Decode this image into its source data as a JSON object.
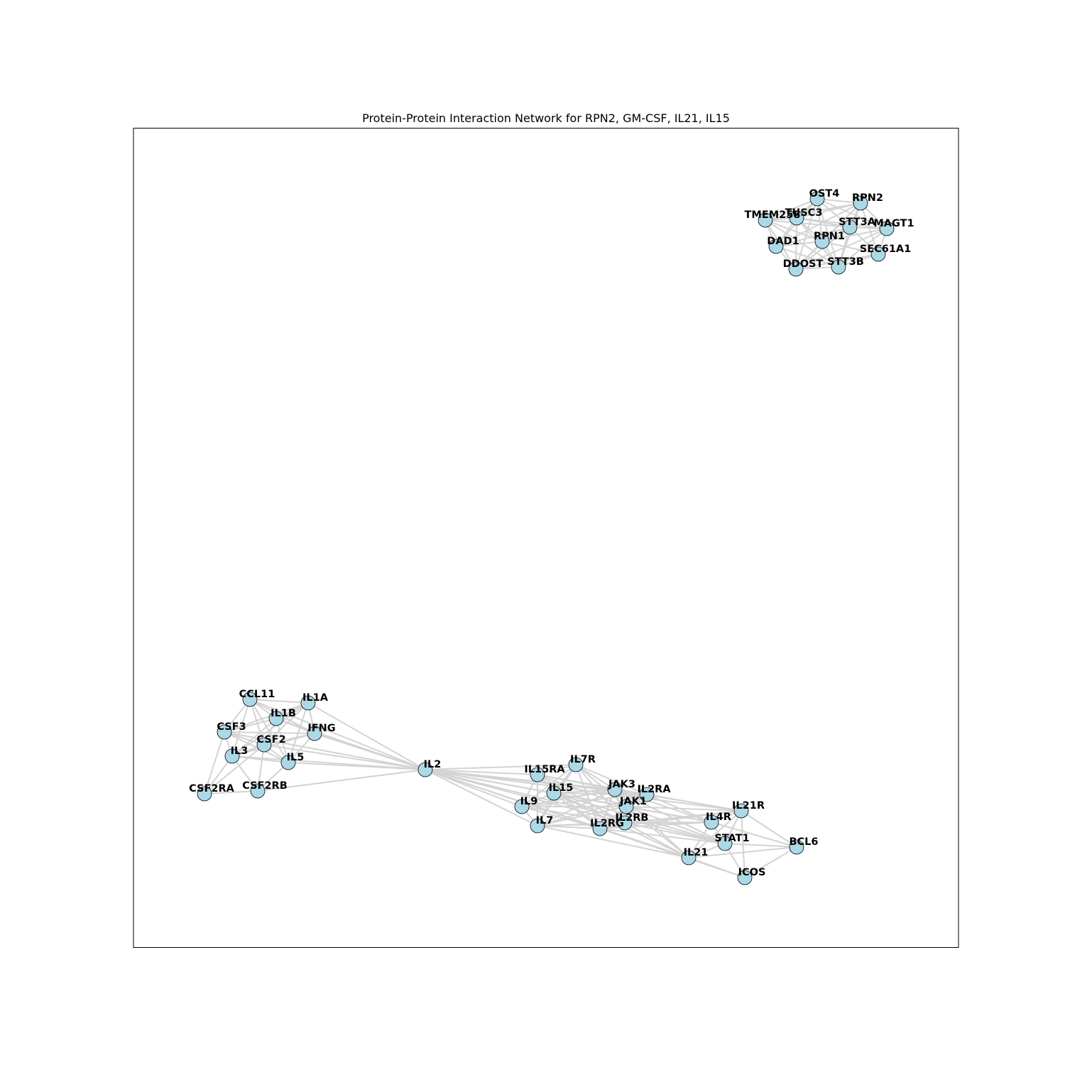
{
  "figure": {
    "title": "Protein-Protein Interaction Network for RPN2, GM-CSF, IL21, IL15"
  },
  "colors": {
    "node_fill": "#add8e6",
    "node_stroke": "#000000",
    "edge": "#d3d3d3",
    "frame": "#000000"
  },
  "nodes": [
    {
      "id": "OST4",
      "label": "OST4"
    },
    {
      "id": "RPN2",
      "label": "RPN2"
    },
    {
      "id": "TMEM258",
      "label": "TMEM258"
    },
    {
      "id": "TUSC3",
      "label": "TUSC3"
    },
    {
      "id": "STT3A",
      "label": "STT3A"
    },
    {
      "id": "MAGT1",
      "label": "MAGT1"
    },
    {
      "id": "DAD1",
      "label": "DAD1"
    },
    {
      "id": "RPN1",
      "label": "RPN1"
    },
    {
      "id": "SEC61A1",
      "label": "SEC61A1"
    },
    {
      "id": "DDOST",
      "label": "DDOST"
    },
    {
      "id": "STT3B",
      "label": "STT3B"
    },
    {
      "id": "CCL11",
      "label": "CCL11"
    },
    {
      "id": "IL1A",
      "label": "IL1A"
    },
    {
      "id": "IL1B",
      "label": "IL1B"
    },
    {
      "id": "CSF3",
      "label": "CSF3"
    },
    {
      "id": "IFNG",
      "label": "IFNG"
    },
    {
      "id": "CSF2",
      "label": "CSF2"
    },
    {
      "id": "IL3",
      "label": "IL3"
    },
    {
      "id": "IL5",
      "label": "IL5"
    },
    {
      "id": "CSF2RA",
      "label": "CSF2RA"
    },
    {
      "id": "CSF2RB",
      "label": "CSF2RB"
    },
    {
      "id": "IL2",
      "label": "IL2"
    },
    {
      "id": "IL7R",
      "label": "IL7R"
    },
    {
      "id": "IL15RA",
      "label": "IL15RA"
    },
    {
      "id": "IL15",
      "label": "IL15"
    },
    {
      "id": "JAK3",
      "label": "JAK3"
    },
    {
      "id": "IL2RA",
      "label": "IL2RA"
    },
    {
      "id": "IL9",
      "label": "IL9"
    },
    {
      "id": "JAK1",
      "label": "JAK1"
    },
    {
      "id": "IL21R",
      "label": "IL21R"
    },
    {
      "id": "IL2RB",
      "label": "IL2RB"
    },
    {
      "id": "IL4R",
      "label": "IL4R"
    },
    {
      "id": "IL7",
      "label": "IL7"
    },
    {
      "id": "IL2RG",
      "label": "IL2RG"
    },
    {
      "id": "STAT1",
      "label": "STAT1"
    },
    {
      "id": "BCL6",
      "label": "BCL6"
    },
    {
      "id": "IL21",
      "label": "IL21"
    },
    {
      "id": "ICOS",
      "label": "ICOS"
    }
  ],
  "edges": [
    [
      "OST4",
      "RPN2"
    ],
    [
      "OST4",
      "TUSC3"
    ],
    [
      "OST4",
      "STT3A"
    ],
    [
      "OST4",
      "RPN1"
    ],
    [
      "OST4",
      "TMEM258"
    ],
    [
      "OST4",
      "DAD1"
    ],
    [
      "OST4",
      "MAGT1"
    ],
    [
      "OST4",
      "DDOST"
    ],
    [
      "OST4",
      "STT3B"
    ],
    [
      "RPN2",
      "TUSC3"
    ],
    [
      "RPN2",
      "STT3A"
    ],
    [
      "RPN2",
      "MAGT1"
    ],
    [
      "RPN2",
      "RPN1"
    ],
    [
      "RPN2",
      "SEC61A1"
    ],
    [
      "RPN2",
      "DDOST"
    ],
    [
      "RPN2",
      "DAD1"
    ],
    [
      "RPN2",
      "TMEM258"
    ],
    [
      "RPN2",
      "STT3B"
    ],
    [
      "TMEM258",
      "TUSC3"
    ],
    [
      "TMEM258",
      "DAD1"
    ],
    [
      "TMEM258",
      "RPN1"
    ],
    [
      "TMEM258",
      "DDOST"
    ],
    [
      "TMEM258",
      "STT3A"
    ],
    [
      "TMEM258",
      "STT3B"
    ],
    [
      "TUSC3",
      "STT3A"
    ],
    [
      "TUSC3",
      "RPN1"
    ],
    [
      "TUSC3",
      "DAD1"
    ],
    [
      "TUSC3",
      "DDOST"
    ],
    [
      "TUSC3",
      "STT3B"
    ],
    [
      "TUSC3",
      "MAGT1"
    ],
    [
      "STT3A",
      "MAGT1"
    ],
    [
      "STT3A",
      "RPN1"
    ],
    [
      "STT3A",
      "SEC61A1"
    ],
    [
      "STT3A",
      "STT3B"
    ],
    [
      "STT3A",
      "DDOST"
    ],
    [
      "STT3A",
      "DAD1"
    ],
    [
      "MAGT1",
      "RPN1"
    ],
    [
      "MAGT1",
      "SEC61A1"
    ],
    [
      "MAGT1",
      "STT3B"
    ],
    [
      "MAGT1",
      "DDOST"
    ],
    [
      "DAD1",
      "RPN1"
    ],
    [
      "DAD1",
      "DDOST"
    ],
    [
      "DAD1",
      "STT3B"
    ],
    [
      "RPN1",
      "SEC61A1"
    ],
    [
      "RPN1",
      "DDOST"
    ],
    [
      "RPN1",
      "STT3B"
    ],
    [
      "SEC61A1",
      "STT3B"
    ],
    [
      "SEC61A1",
      "DDOST"
    ],
    [
      "DDOST",
      "STT3B"
    ],
    [
      "CCL11",
      "IL1A"
    ],
    [
      "CCL11",
      "IL1B"
    ],
    [
      "CCL11",
      "CSF3"
    ],
    [
      "CCL11",
      "IFNG"
    ],
    [
      "CCL11",
      "CSF2"
    ],
    [
      "CCL11",
      "IL5"
    ],
    [
      "CCL11",
      "IL3"
    ],
    [
      "IL1A",
      "IL1B"
    ],
    [
      "IL1A",
      "CSF3"
    ],
    [
      "IL1A",
      "CSF2"
    ],
    [
      "IL1A",
      "IFNG"
    ],
    [
      "IL1A",
      "IL5"
    ],
    [
      "IL1A",
      "IL3"
    ],
    [
      "IL1B",
      "CSF3"
    ],
    [
      "IL1B",
      "IFNG"
    ],
    [
      "IL1B",
      "CSF2"
    ],
    [
      "IL1B",
      "IL3"
    ],
    [
      "IL1B",
      "IL5"
    ],
    [
      "CSF3",
      "CSF2"
    ],
    [
      "CSF3",
      "IL3"
    ],
    [
      "CSF3",
      "IFNG"
    ],
    [
      "CSF3",
      "IL5"
    ],
    [
      "CSF3",
      "CSF2RA"
    ],
    [
      "IFNG",
      "CSF2"
    ],
    [
      "IFNG",
      "IL3"
    ],
    [
      "IFNG",
      "IL5"
    ],
    [
      "CSF2",
      "IL3"
    ],
    [
      "CSF2",
      "IL5"
    ],
    [
      "CSF2",
      "CSF2RA"
    ],
    [
      "CSF2",
      "CSF2RB"
    ],
    [
      "IL3",
      "IL5"
    ],
    [
      "IL3",
      "CSF2RA"
    ],
    [
      "IL3",
      "CSF2RB"
    ],
    [
      "IL5",
      "CSF2RB"
    ],
    [
      "CSF2RA",
      "CSF2RB"
    ],
    [
      "IL2",
      "CCL11"
    ],
    [
      "IL2",
      "IL1A"
    ],
    [
      "IL2",
      "IL1B"
    ],
    [
      "IL2",
      "CSF3"
    ],
    [
      "IL2",
      "IFNG"
    ],
    [
      "IL2",
      "CSF2"
    ],
    [
      "IL2",
      "IL3"
    ],
    [
      "IL2",
      "IL5"
    ],
    [
      "IL2",
      "CSF2RB"
    ],
    [
      "IL2",
      "IL7R"
    ],
    [
      "IL2",
      "IL15RA"
    ],
    [
      "IL2",
      "IL15"
    ],
    [
      "IL2",
      "JAK3"
    ],
    [
      "IL2",
      "IL2RA"
    ],
    [
      "IL2",
      "IL9"
    ],
    [
      "IL2",
      "JAK1"
    ],
    [
      "IL2",
      "IL2RB"
    ],
    [
      "IL2",
      "IL7"
    ],
    [
      "IL2",
      "IL2RG"
    ],
    [
      "IL2",
      "IL21"
    ],
    [
      "IL2",
      "IL4R"
    ],
    [
      "IL2",
      "STAT1"
    ],
    [
      "IL2",
      "IL21R"
    ],
    [
      "IL7R",
      "IL15RA"
    ],
    [
      "IL7R",
      "IL15"
    ],
    [
      "IL7R",
      "JAK3"
    ],
    [
      "IL7R",
      "IL2RA"
    ],
    [
      "IL7R",
      "JAK1"
    ],
    [
      "IL7R",
      "IL2RB"
    ],
    [
      "IL7R",
      "IL7"
    ],
    [
      "IL7R",
      "IL2RG"
    ],
    [
      "IL7R",
      "IL9"
    ],
    [
      "IL15RA",
      "IL15"
    ],
    [
      "IL15RA",
      "JAK3"
    ],
    [
      "IL15RA",
      "IL2RA"
    ],
    [
      "IL15RA",
      "IL2RB"
    ],
    [
      "IL15RA",
      "IL2RG"
    ],
    [
      "IL15RA",
      "IL9"
    ],
    [
      "IL15RA",
      "IL7"
    ],
    [
      "IL15RA",
      "JAK1"
    ],
    [
      "IL15",
      "JAK3"
    ],
    [
      "IL15",
      "IL2RA"
    ],
    [
      "IL15",
      "JAK1"
    ],
    [
      "IL15",
      "IL2RB"
    ],
    [
      "IL15",
      "IL2RG"
    ],
    [
      "IL15",
      "IL9"
    ],
    [
      "IL15",
      "IL7"
    ],
    [
      "IL15",
      "IL21"
    ],
    [
      "IL15",
      "IL4R"
    ],
    [
      "IL15",
      "STAT1"
    ],
    [
      "JAK3",
      "IL2RA"
    ],
    [
      "JAK3",
      "JAK1"
    ],
    [
      "JAK3",
      "IL2RB"
    ],
    [
      "JAK3",
      "IL2RG"
    ],
    [
      "JAK3",
      "IL9"
    ],
    [
      "JAK3",
      "IL7"
    ],
    [
      "JAK3",
      "IL21R"
    ],
    [
      "JAK3",
      "IL4R"
    ],
    [
      "JAK3",
      "IL21"
    ],
    [
      "JAK3",
      "STAT1"
    ],
    [
      "IL2RA",
      "JAK1"
    ],
    [
      "IL2RA",
      "IL2RB"
    ],
    [
      "IL2RA",
      "IL2RG"
    ],
    [
      "IL2RA",
      "IL9"
    ],
    [
      "IL2RA",
      "IL7"
    ],
    [
      "IL2RA",
      "IL21R"
    ],
    [
      "IL2RA",
      "IL4R"
    ],
    [
      "IL9",
      "JAK1"
    ],
    [
      "IL9",
      "IL2RB"
    ],
    [
      "IL9",
      "IL7"
    ],
    [
      "IL9",
      "IL2RG"
    ],
    [
      "IL9",
      "JAK3"
    ],
    [
      "JAK1",
      "IL2RB"
    ],
    [
      "JAK1",
      "IL2RG"
    ],
    [
      "JAK1",
      "IL7"
    ],
    [
      "JAK1",
      "IL21R"
    ],
    [
      "JAK1",
      "IL4R"
    ],
    [
      "JAK1",
      "STAT1"
    ],
    [
      "JAK1",
      "IL21"
    ],
    [
      "IL2RB",
      "IL2RG"
    ],
    [
      "IL2RB",
      "IL7"
    ],
    [
      "IL2RB",
      "IL21R"
    ],
    [
      "IL2RB",
      "IL4R"
    ],
    [
      "IL2RB",
      "IL21"
    ],
    [
      "IL2RB",
      "STAT1"
    ],
    [
      "IL7",
      "IL2RG"
    ],
    [
      "IL7",
      "IL21"
    ],
    [
      "IL7",
      "IL4R"
    ],
    [
      "IL2RG",
      "IL21R"
    ],
    [
      "IL2RG",
      "IL4R"
    ],
    [
      "IL2RG",
      "IL21"
    ],
    [
      "IL2RG",
      "STAT1"
    ],
    [
      "IL2RG",
      "ICOS"
    ],
    [
      "IL21R",
      "IL4R"
    ],
    [
      "IL21R",
      "STAT1"
    ],
    [
      "IL21R",
      "BCL6"
    ],
    [
      "IL21R",
      "IL21"
    ],
    [
      "IL21R",
      "ICOS"
    ],
    [
      "IL4R",
      "STAT1"
    ],
    [
      "IL4R",
      "BCL6"
    ],
    [
      "IL4R",
      "IL21"
    ],
    [
      "STAT1",
      "BCL6"
    ],
    [
      "STAT1",
      "IL21"
    ],
    [
      "STAT1",
      "ICOS"
    ],
    [
      "IL21",
      "BCL6"
    ],
    [
      "IL21",
      "ICOS"
    ],
    [
      "BCL6",
      "ICOS"
    ]
  ]
}
